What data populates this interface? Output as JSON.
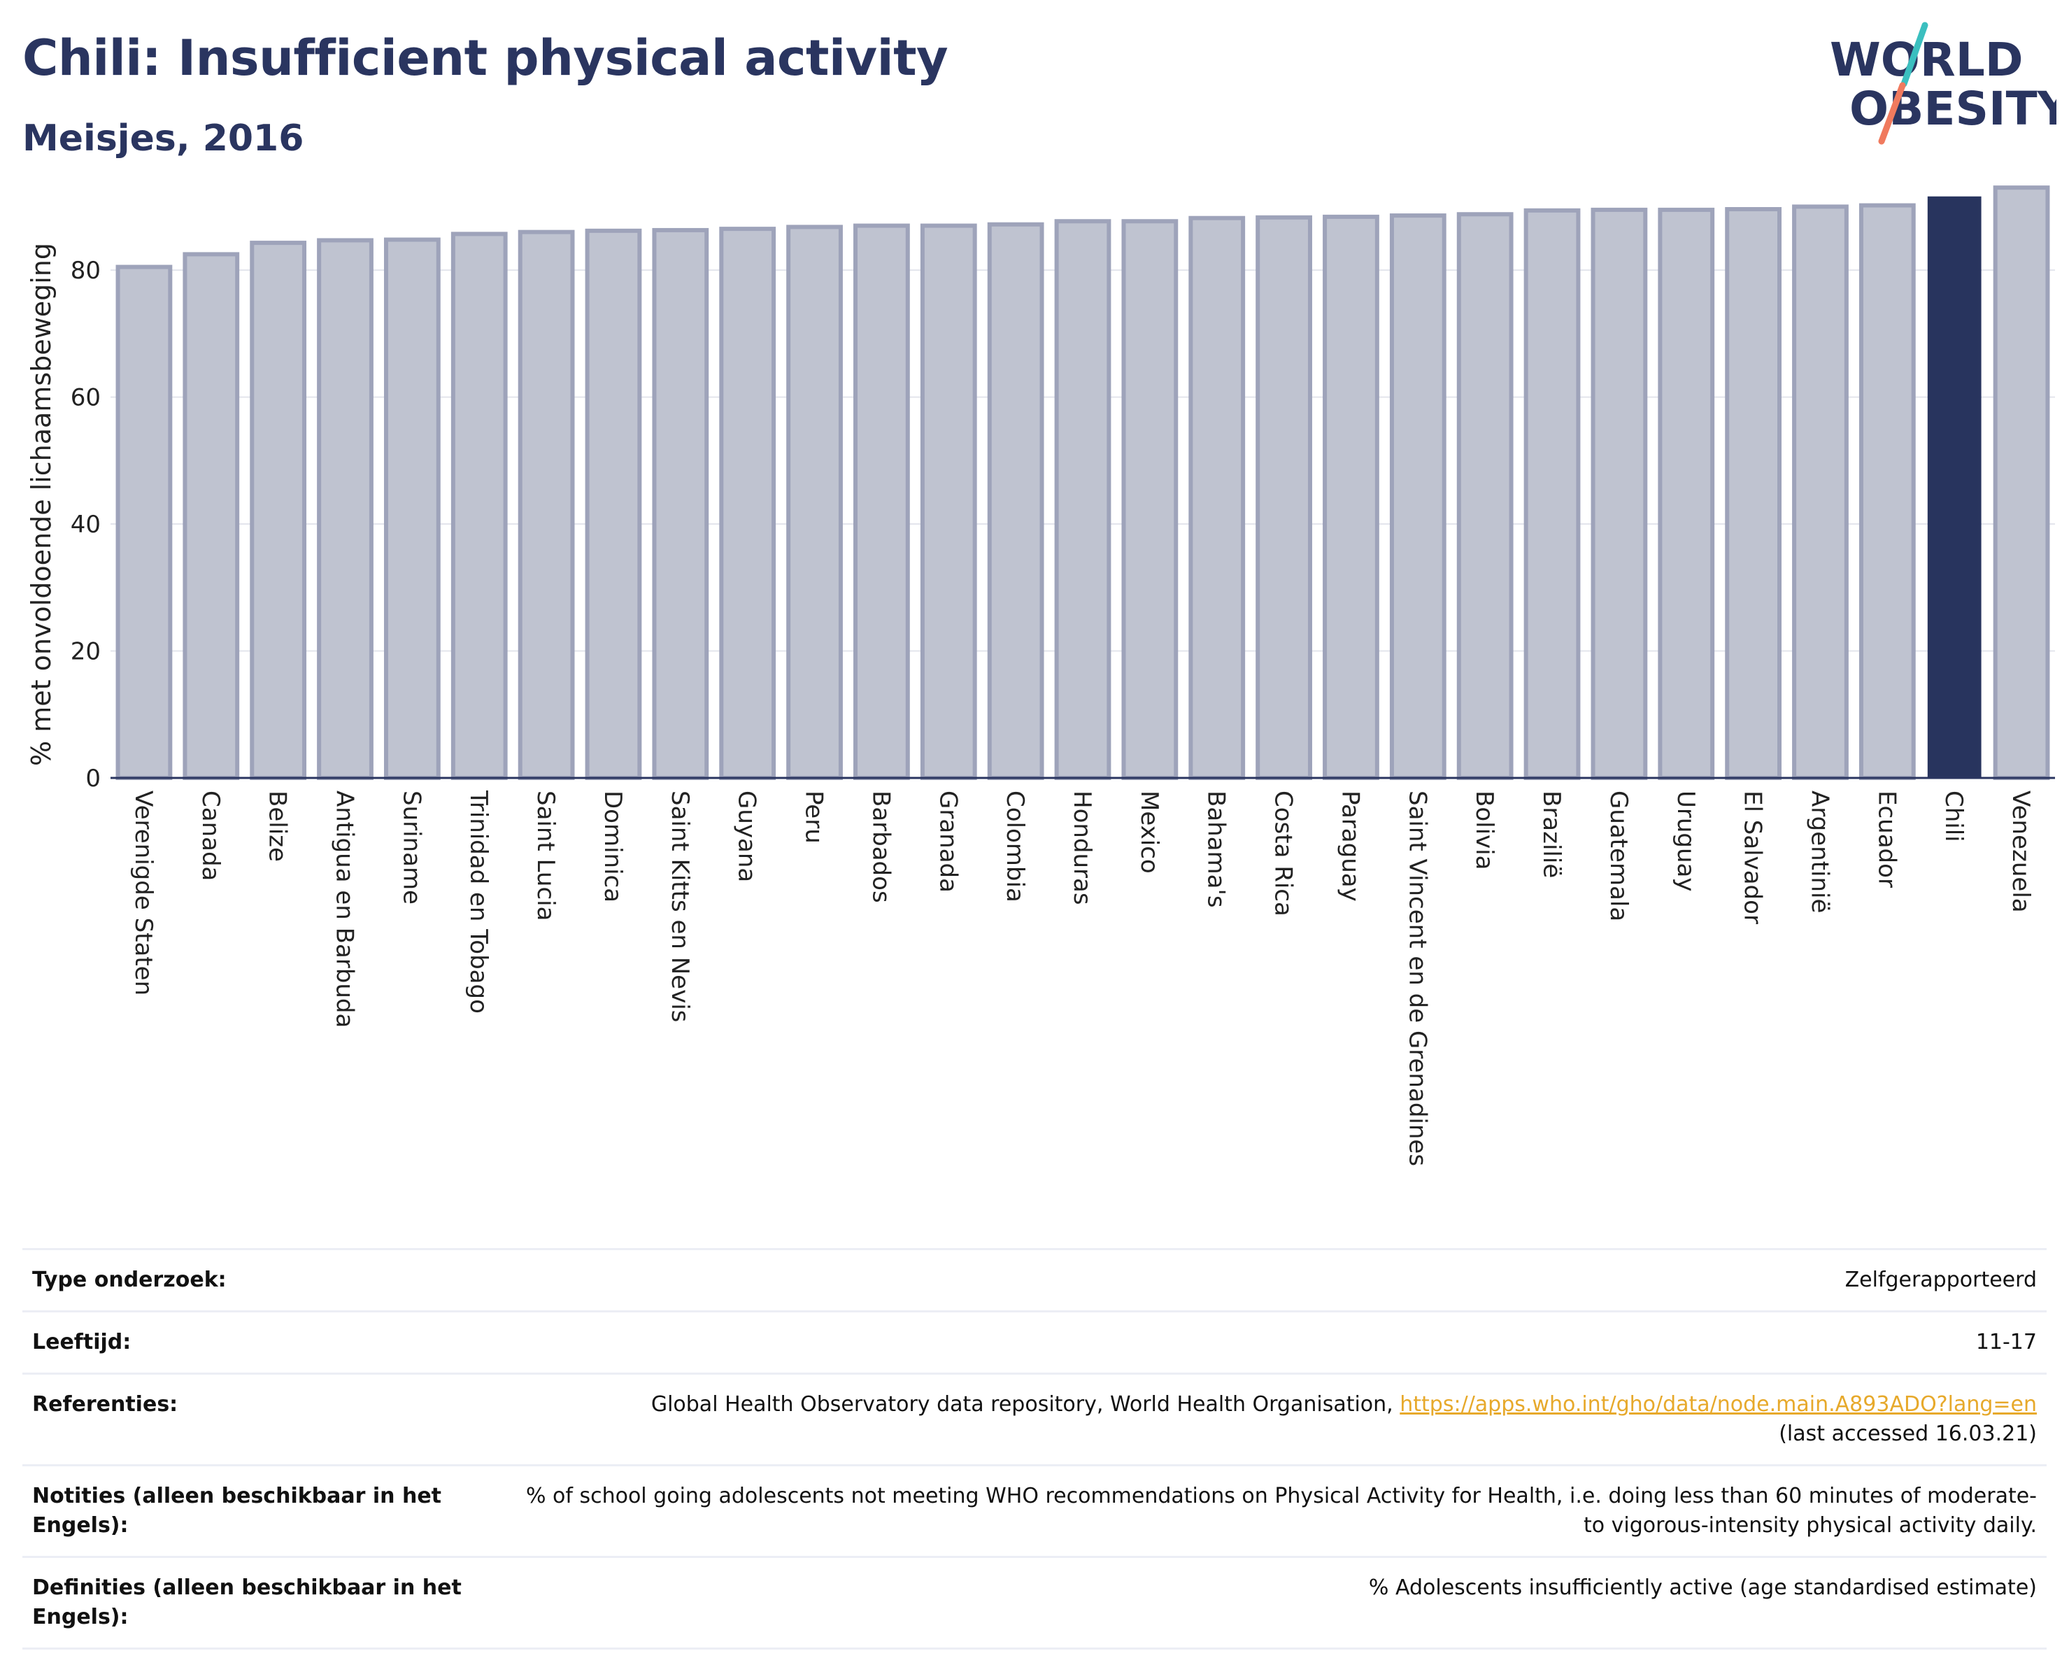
{
  "header": {
    "title": "Chili: Insufficient physical activity",
    "subtitle": "Meisjes, 2016"
  },
  "logo": {
    "line1": "WORLD",
    "line2": "OBESITY"
  },
  "chart_data": {
    "type": "bar",
    "ylabel": "% met onvoldoende lichaamsbeweging",
    "xlabel": "",
    "ylim": [
      0,
      95
    ],
    "yticks": [
      0,
      20,
      40,
      60,
      80
    ],
    "grid": true,
    "highlight": "Chili",
    "colors": {
      "bar": "#bfc3d0",
      "bar_border": "#9ea3ba",
      "highlight": "#28345e",
      "axis": "#2a3560",
      "grid": "#e3e5ec"
    },
    "categories": [
      "Verenigde Staten",
      "Canada",
      "Belize",
      "Antigua en Barbuda",
      "Suriname",
      "Trinidad en Tobago",
      "Saint Lucia",
      "Dominica",
      "Saint Kitts en Nevis",
      "Guyana",
      "Peru",
      "Barbados",
      "Granada",
      "Colombia",
      "Honduras",
      "Mexico",
      "Bahama's",
      "Costa Rica",
      "Paraguay",
      "Saint Vincent en de Grenadines",
      "Bolivia",
      "Brazilië",
      "Guatemala",
      "Uruguay",
      "El Salvador",
      "Argentinië",
      "Ecuador",
      "Chili",
      "Venezuela"
    ],
    "values": [
      80.5,
      82.5,
      84.3,
      84.7,
      84.8,
      85.7,
      86.0,
      86.2,
      86.3,
      86.5,
      86.8,
      87.0,
      87.0,
      87.2,
      87.7,
      87.7,
      88.2,
      88.3,
      88.4,
      88.6,
      88.8,
      89.4,
      89.5,
      89.5,
      89.6,
      90.0,
      90.2,
      91.5,
      93.0
    ]
  },
  "info": {
    "type_label": "Type onderzoek:",
    "type_value": "Zelfgerapporteerd",
    "age_label": "Leeftijd:",
    "age_value": "11-17",
    "ref_label": "Referenties:",
    "ref_text": "Global Health Observatory data repository, World Health Organisation,",
    "ref_link": "https://apps.who.int/gho/data/node.main.A893ADO?lang=en",
    "ref_accessed": "(last accessed 16.03.21)",
    "notes_label": "Notities (alleen beschikbaar in het Engels):",
    "notes_value": "% of school going adolescents not meeting WHO recommendations on Physical Activity for Health, i.e. doing less than 60 minutes of moderate- to vigorous-intensity physical activity daily.",
    "def_label": "Definities (alleen beschikbaar in het Engels):",
    "def_value": "% Adolescents insufficiently active (age standardised estimate)"
  }
}
